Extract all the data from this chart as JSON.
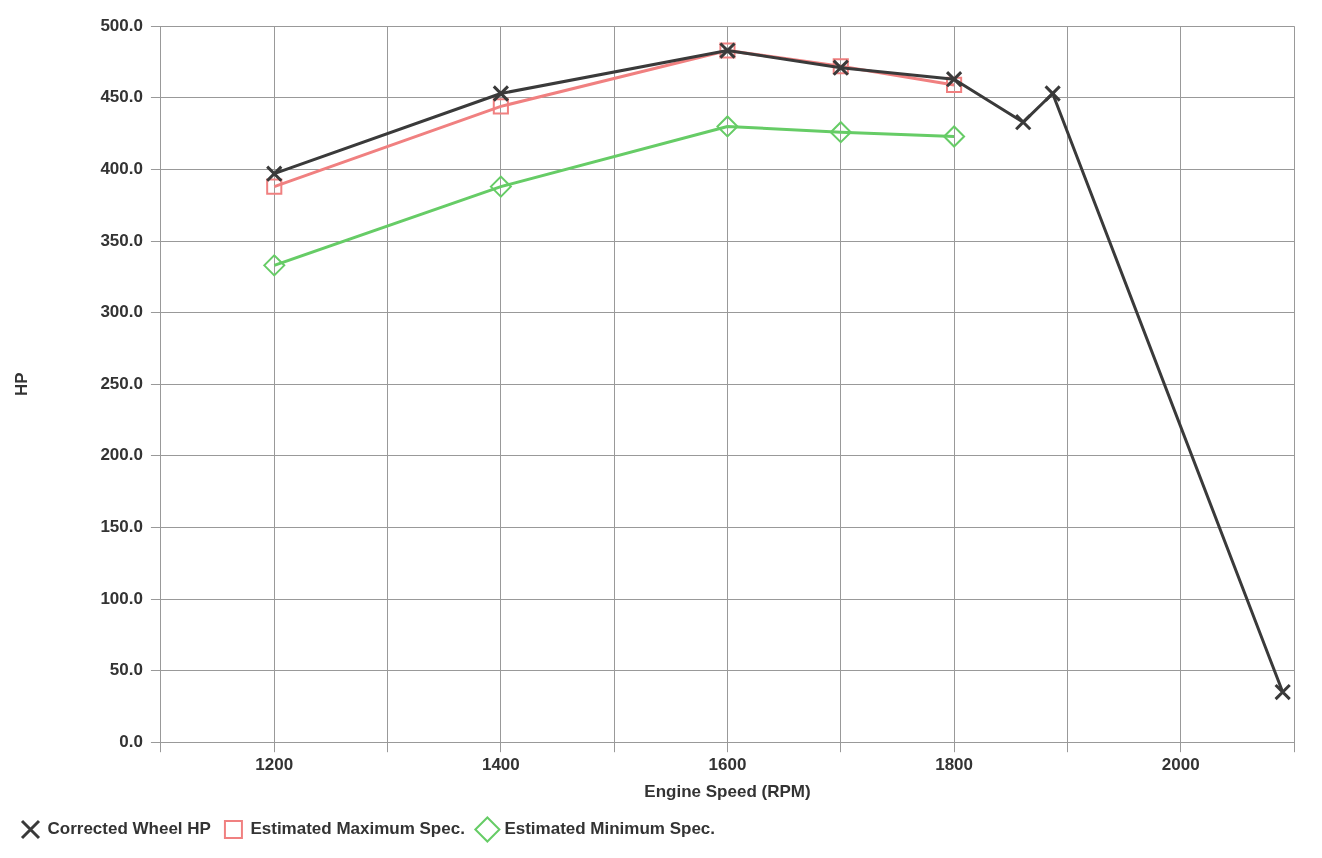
{
  "chart_data": {
    "type": "line",
    "xlabel": "Engine Speed (RPM)",
    "ylabel": "HP",
    "xlim": [
      1100,
      2100
    ],
    "xticks": [
      {
        "value": 1100,
        "label": null
      },
      1200,
      {
        "value": 1300,
        "label": null
      },
      1400,
      {
        "value": 1500,
        "label": null
      },
      1600,
      {
        "value": 1700,
        "label": null
      },
      1800,
      {
        "value": 1900,
        "label": null
      },
      2000,
      {
        "value": 2100,
        "label": null
      }
    ],
    "ylim": [
      0,
      500
    ],
    "yticks": [
      {
        "value": 0,
        "label": "0.0"
      },
      {
        "value": 50,
        "label": "50.0"
      },
      {
        "value": 100,
        "label": "100.0"
      },
      {
        "value": 150,
        "label": "150.0"
      },
      {
        "value": 200,
        "label": "200.0"
      },
      {
        "value": 250,
        "label": "250.0"
      },
      {
        "value": 300,
        "label": "300.0"
      },
      {
        "value": 350,
        "label": "350.0"
      },
      {
        "value": 400,
        "label": "400.0"
      },
      {
        "value": 450,
        "label": "450.0"
      },
      {
        "value": 500,
        "label": "500.0"
      }
    ],
    "grid": true,
    "legend": "bottom left",
    "line_style": "solid",
    "series": [
      {
        "name": "Corrected Wheel HP",
        "color": "#3a3a3a",
        "marker": "cross",
        "x": [
          1200,
          1400,
          1600,
          1700,
          1800,
          1861,
          1887,
          2090
        ],
        "values": [
          397,
          453,
          483,
          471,
          463,
          433,
          453,
          35
        ]
      },
      {
        "name": "Estimated Maximum Spec.",
        "color": "#f08080",
        "marker": "square",
        "x": [
          1200,
          1400,
          1600,
          1700,
          1800
        ],
        "values": [
          388,
          444,
          483,
          472,
          459
        ]
      },
      {
        "name": "Estimated Minimum Spec.",
        "color": "#66cc66",
        "marker": "diamond",
        "x": [
          1200,
          1400,
          1600,
          1700,
          1800
        ],
        "values": [
          333,
          388,
          430,
          426,
          423
        ]
      }
    ]
  }
}
